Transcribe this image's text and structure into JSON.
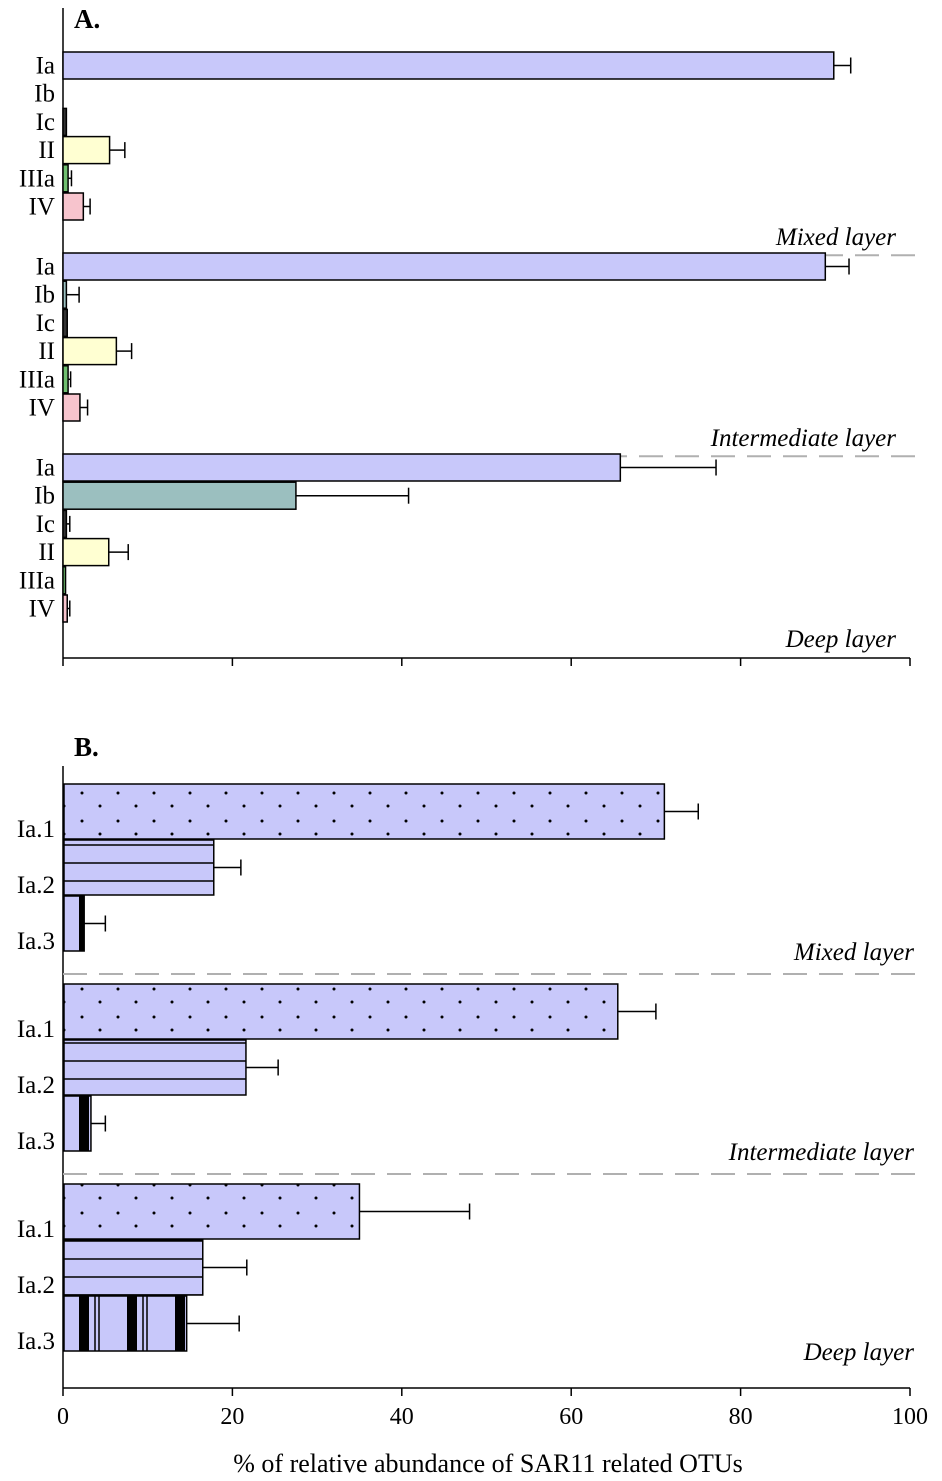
{
  "chart_data": [
    {
      "type": "bar",
      "orientation": "horizontal",
      "panel_label": "A.",
      "categories": [
        "Ia",
        "Ib",
        "Ic",
        "II",
        "IIIa",
        "IV"
      ],
      "groups": [
        {
          "name": "Mixed layer",
          "values": [
            91.0,
            0.0,
            0.4,
            5.5,
            0.6,
            2.4
          ],
          "errors": [
            2.0,
            0.0,
            0.0,
            1.8,
            0.4,
            0.8
          ]
        },
        {
          "name": "Intermediate layer",
          "values": [
            90.0,
            0.4,
            0.5,
            6.3,
            0.6,
            2.0
          ],
          "errors": [
            2.8,
            1.5,
            0.0,
            1.8,
            0.3,
            0.9
          ]
        },
        {
          "name": "Deep layer",
          "values": [
            65.8,
            27.5,
            0.4,
            5.4,
            0.3,
            0.5
          ],
          "errors": [
            11.3,
            13.3,
            0.4,
            2.3,
            0.0,
            0.3
          ]
        }
      ],
      "category_colors": {
        "Ia": "#c8c8fa",
        "Ib": "#9bbfbf",
        "Ic": "#333333",
        "II": "#ffffd2",
        "IIIa": "#6fbf6f",
        "IV": "#f7c4cd"
      },
      "xlim": [
        0,
        100
      ]
    },
    {
      "type": "bar",
      "orientation": "horizontal",
      "panel_label": "B.",
      "categories": [
        "Ia.1",
        "Ia.2",
        "Ia.3"
      ],
      "groups": [
        {
          "name": "Mixed layer",
          "values": [
            71.0,
            17.8,
            2.5
          ],
          "errors": [
            4.0,
            3.2,
            2.5
          ]
        },
        {
          "name": "Intermediate layer",
          "values": [
            65.5,
            21.6,
            3.3
          ],
          "errors": [
            4.5,
            3.8,
            1.7
          ]
        },
        {
          "name": "Deep layer",
          "values": [
            35.0,
            16.5,
            14.6
          ],
          "errors": [
            13.0,
            5.2,
            6.2
          ]
        }
      ],
      "bar_color": "#c8c8fa",
      "patterns": {
        "Ia.1": "dots",
        "Ia.2": "horizontal-lines",
        "Ia.3": "vertical-bars"
      },
      "xlim": [
        0,
        100
      ],
      "xticks": [
        0,
        20,
        40,
        60,
        80,
        100
      ],
      "xlabel": "% of relative abundance of SAR11 related OTUs"
    }
  ]
}
